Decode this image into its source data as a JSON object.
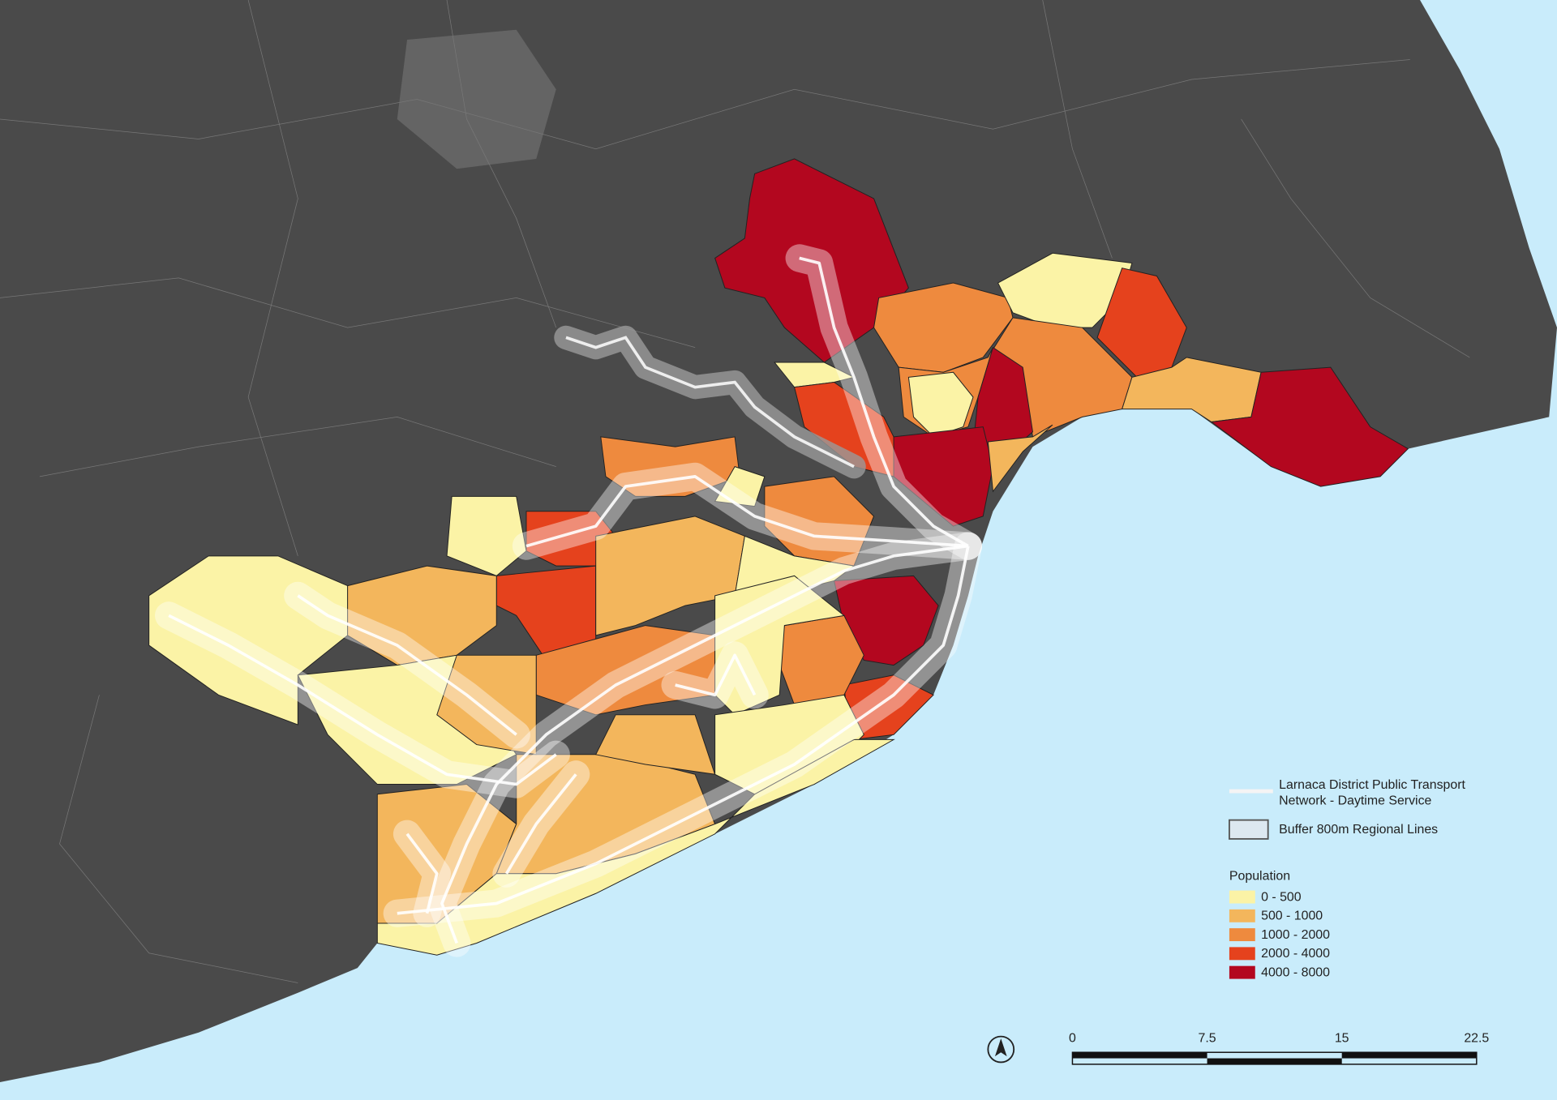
{
  "legend": {
    "network_label": [
      "Larnaca District Public Transport",
      "Network - Daytime Service"
    ],
    "buffer_label": "Buffer 800m Regional Lines",
    "population_title": "Population",
    "classes": [
      {
        "label": "0 - 500",
        "color": "#fbf3a6"
      },
      {
        "label": "500 - 1000",
        "color": "#f3b65c"
      },
      {
        "label": "1000 - 2000",
        "color": "#ee8a3e"
      },
      {
        "label": "2000 - 4000",
        "color": "#e5421d"
      },
      {
        "label": "4000 - 8000",
        "color": "#b3071f"
      }
    ]
  },
  "scale_bar": {
    "labels": [
      "0",
      "7.5",
      "15",
      "22.5"
    ]
  }
}
